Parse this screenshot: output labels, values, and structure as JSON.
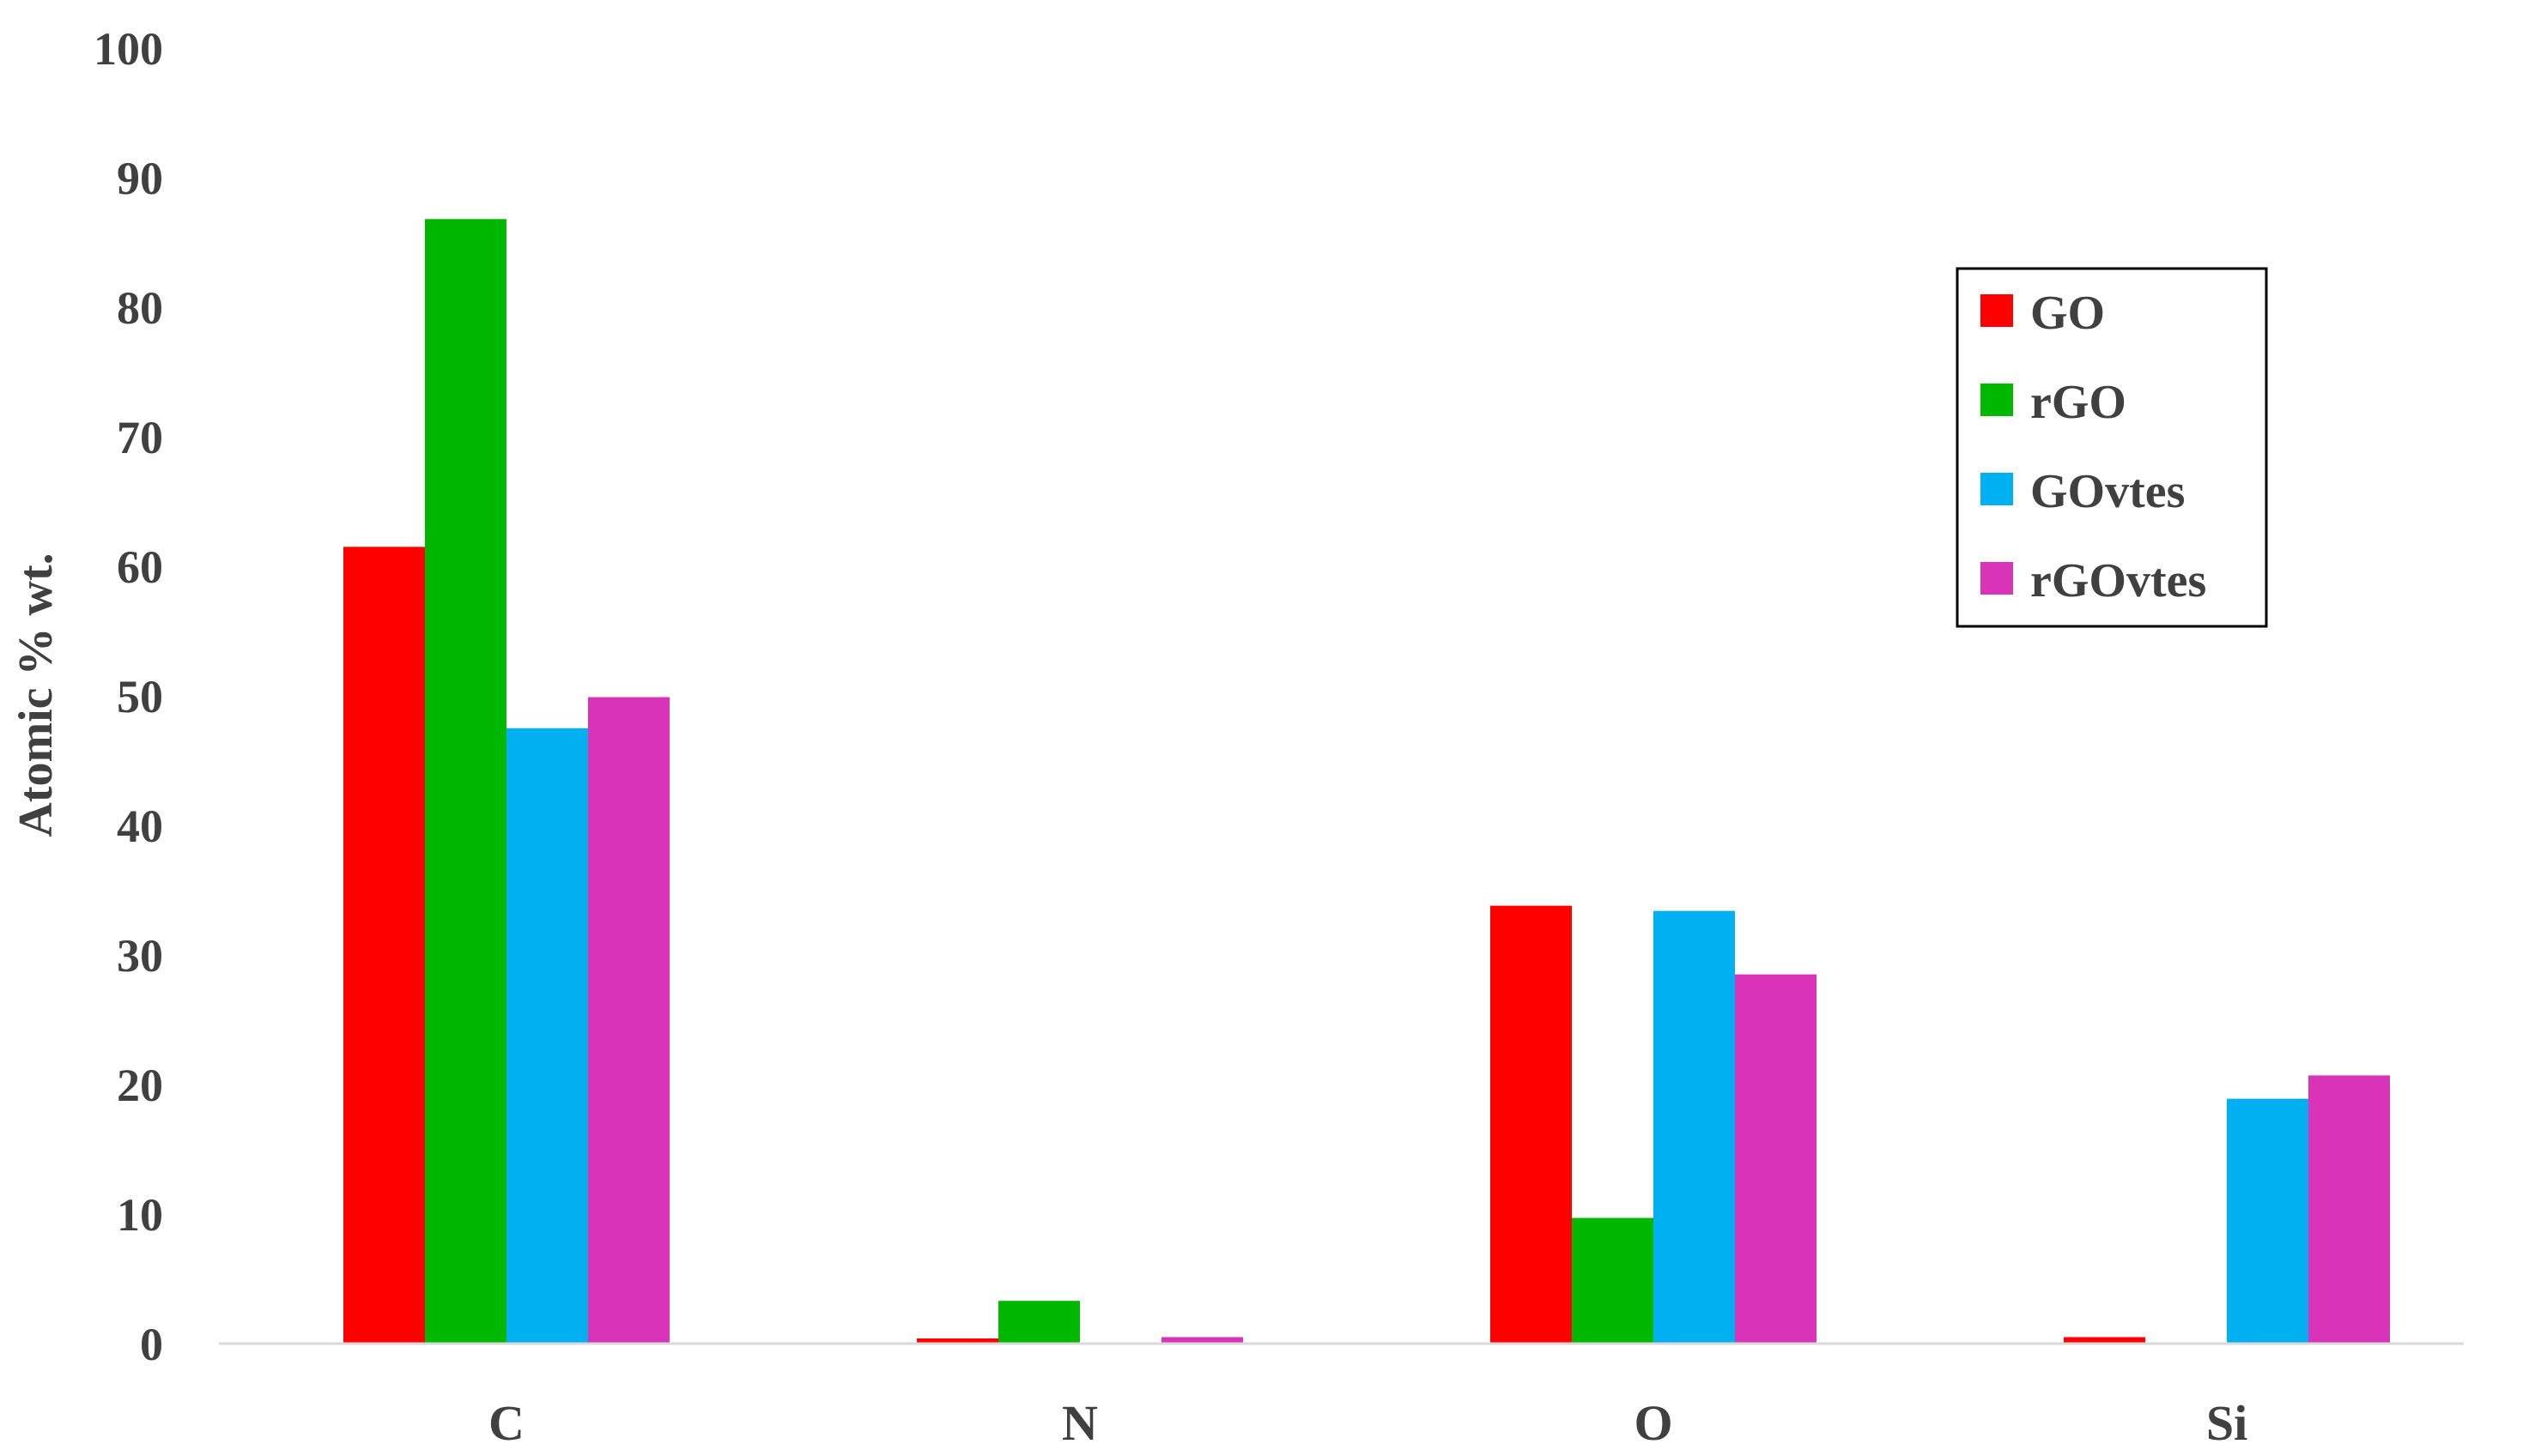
{
  "chart_data": {
    "type": "bar",
    "title": "",
    "xlabel": "",
    "ylabel": "Atomic % wt.",
    "ylim": [
      0,
      100
    ],
    "yticks": [
      0,
      10,
      20,
      30,
      40,
      50,
      60,
      70,
      80,
      90,
      100
    ],
    "categories": [
      "C",
      "N",
      "O",
      "Si"
    ],
    "series": [
      {
        "name": "GO",
        "color": "#ff0000",
        "values": [
          61.5,
          0.4,
          33.8,
          0.5
        ]
      },
      {
        "name": "rGO",
        "color": "#00b800",
        "values": [
          86.8,
          3.3,
          9.7,
          0
        ]
      },
      {
        "name": "GOvtes",
        "color": "#00b0f0",
        "values": [
          47.5,
          0,
          33.4,
          18.9
        ]
      },
      {
        "name": "rGOvtes",
        "color": "#d934b9",
        "values": [
          49.9,
          0.5,
          28.5,
          20.7
        ]
      }
    ],
    "grid": false,
    "legend": {
      "position": "top-right"
    }
  }
}
